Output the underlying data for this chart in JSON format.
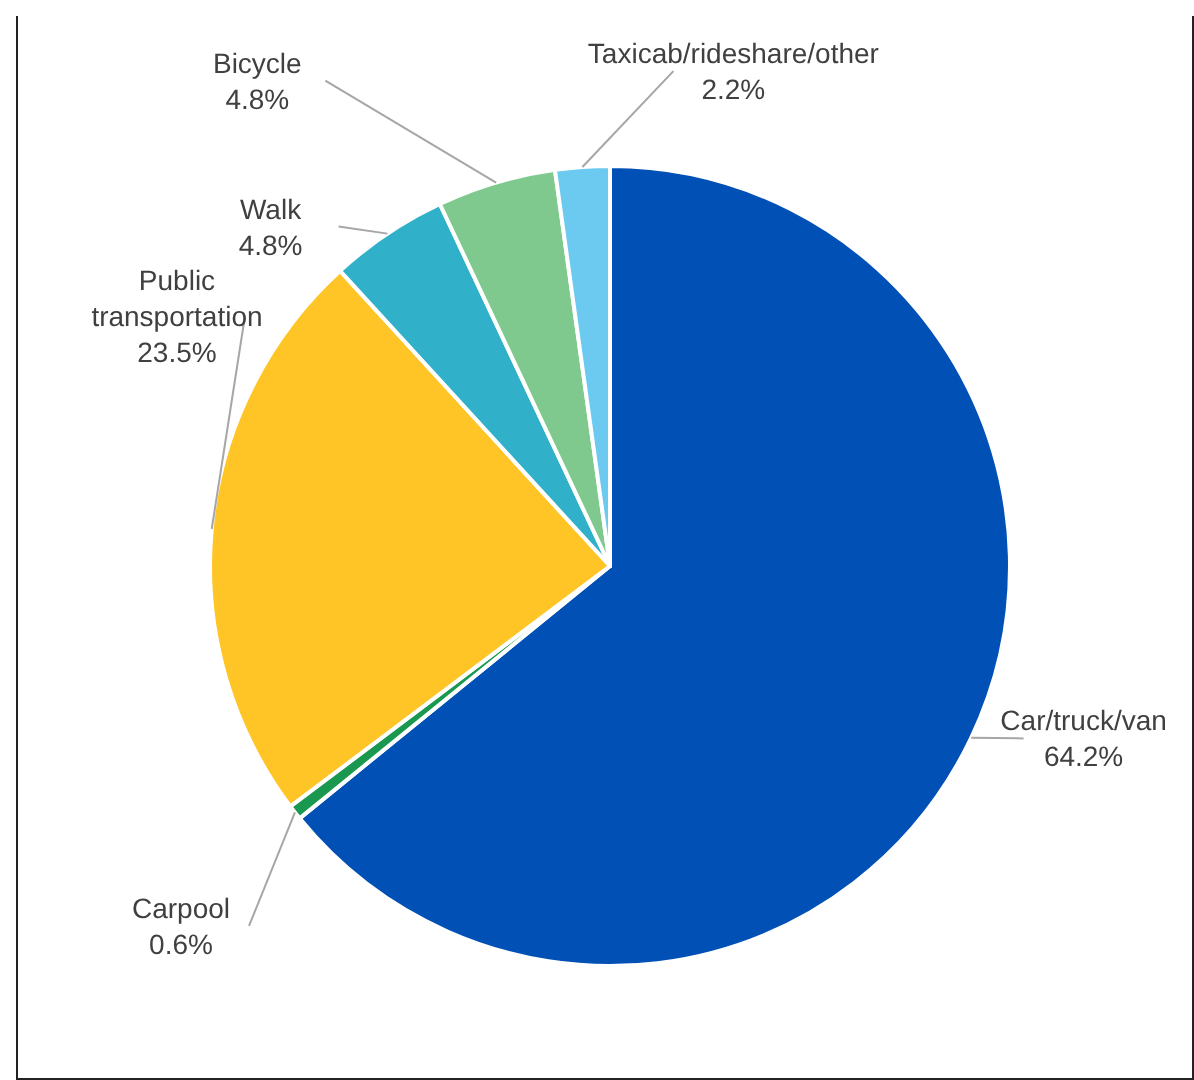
{
  "chart_data": {
    "type": "pie",
    "categories": [
      "Car/truck/van",
      "Carpool",
      "Public transportation",
      "Walk",
      "Bicycle",
      "Taxicab/rideshare/other"
    ],
    "values": [
      64.2,
      0.6,
      23.5,
      4.8,
      4.8,
      2.2
    ],
    "colors": [
      "#0050b5",
      "#1a9850",
      "#ffc425",
      "#31b0c9",
      "#7fc98f",
      "#6ccaf0"
    ],
    "value_labels": [
      "64.2%",
      "0.6%",
      "23.5%",
      "4.8%",
      "4.8%",
      "2.2%"
    ]
  }
}
